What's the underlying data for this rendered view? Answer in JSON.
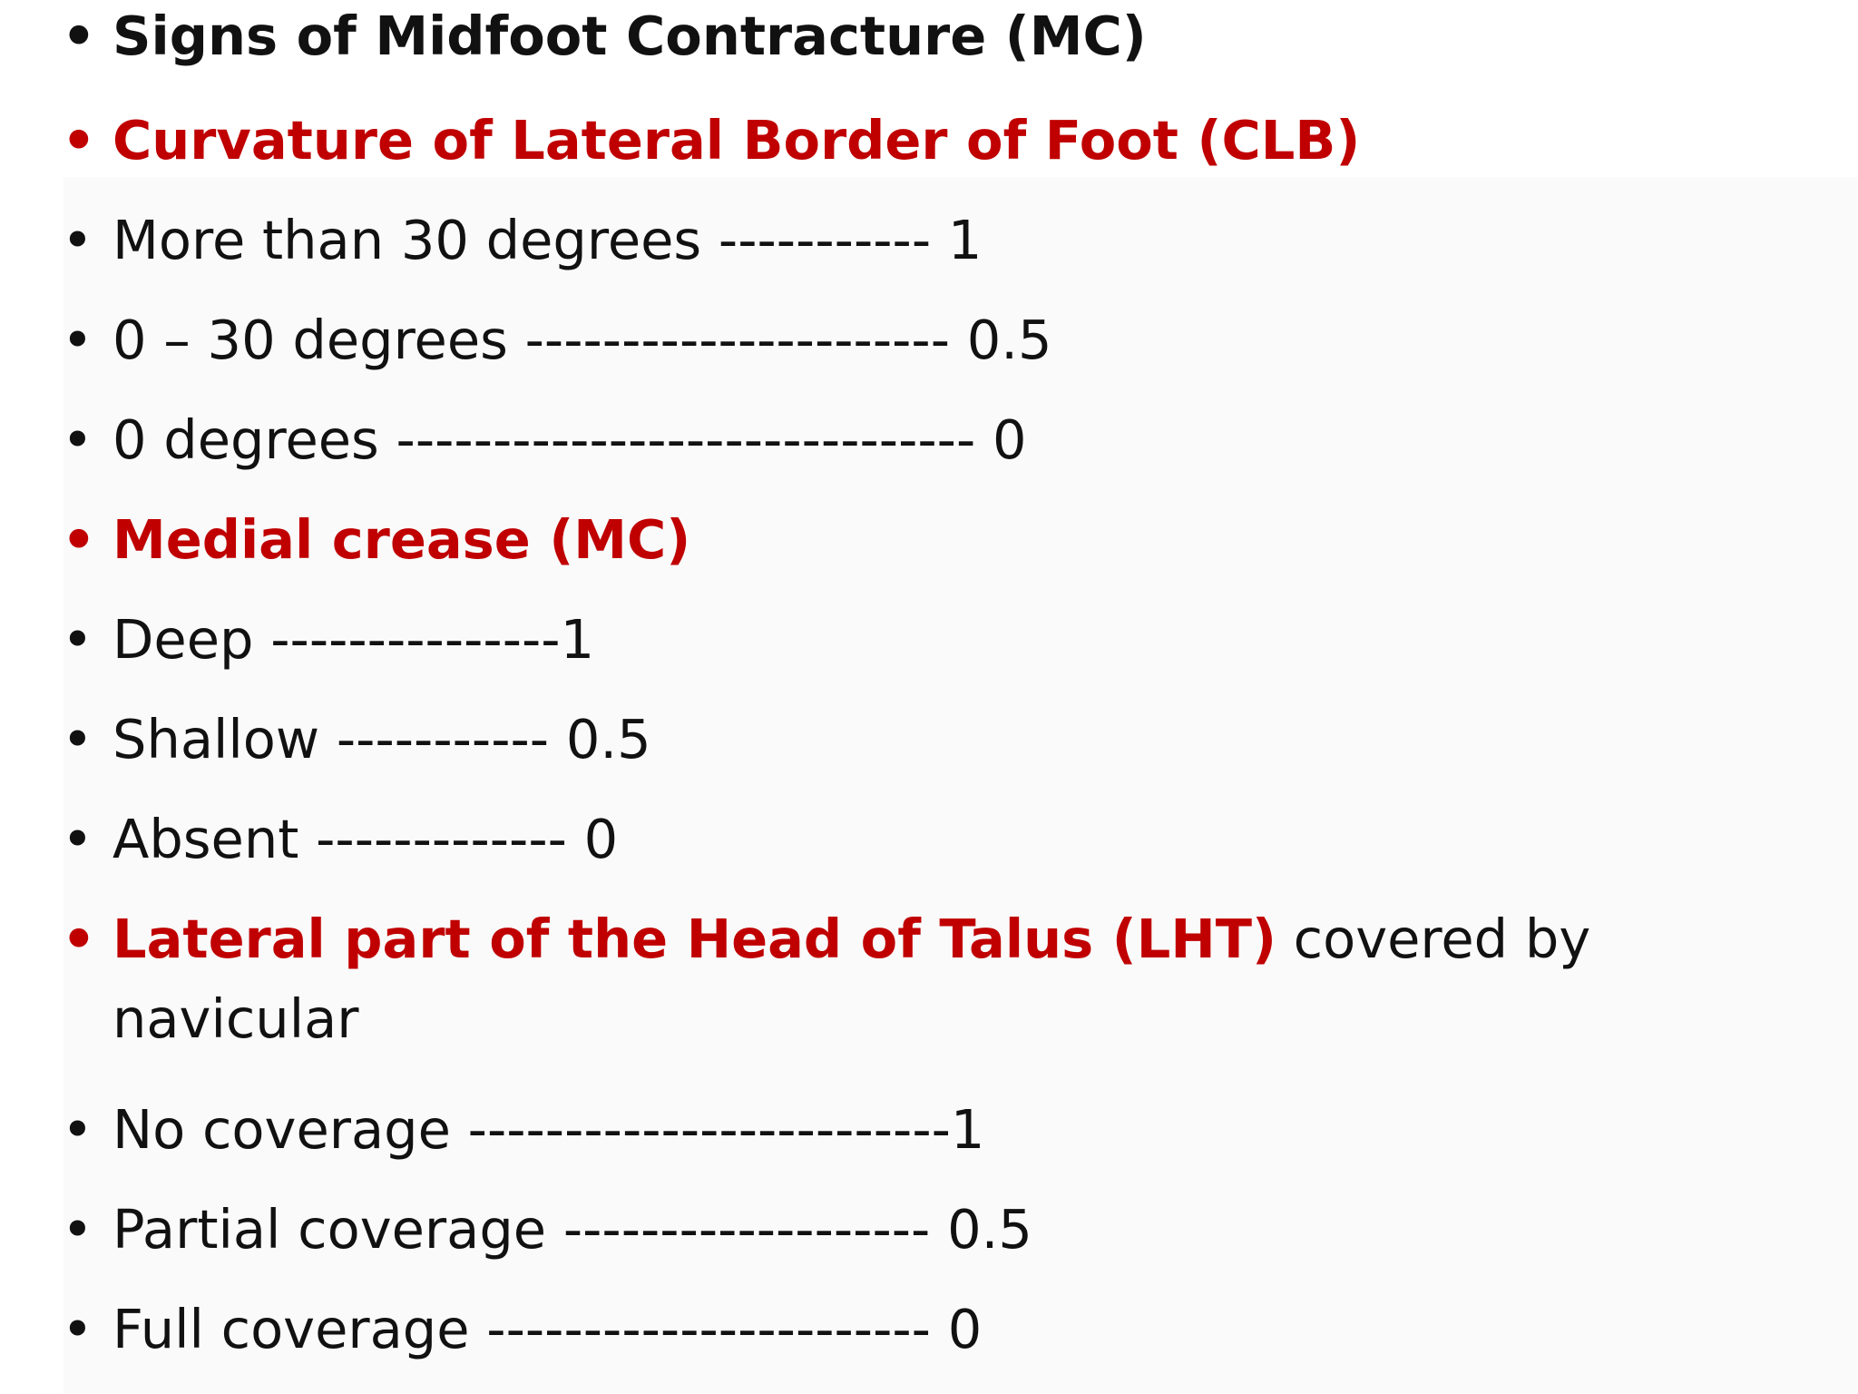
{
  "slide": {
    "heading": "Signs of Midfoot Contracture (MC)",
    "sections": [
      {
        "title": "Curvature of Lateral Border of Foot (CLB)",
        "items": [
          "More than 30 degrees ----------- 1",
          "0 – 30 degrees ---------------------- 0.5",
          "0 degrees ------------------------------ 0"
        ]
      },
      {
        "title": "Medial crease (MC)",
        "items": [
          "Deep ---------------1",
          "Shallow ----------- 0.5",
          "Absent ------------- 0"
        ]
      },
      {
        "title": "Lateral part of the Head of Talus (LHT)",
        "title_suffix": "covered by navicular",
        "items": [
          "No coverage -------------------------1",
          "Partial coverage ------------------- 0.5",
          "Full coverage  ----------------------- 0"
        ]
      }
    ]
  },
  "colors": {
    "heading": "#111111",
    "section_title": "#c00000",
    "body_text": "#111111",
    "background": "#ffffff"
  }
}
